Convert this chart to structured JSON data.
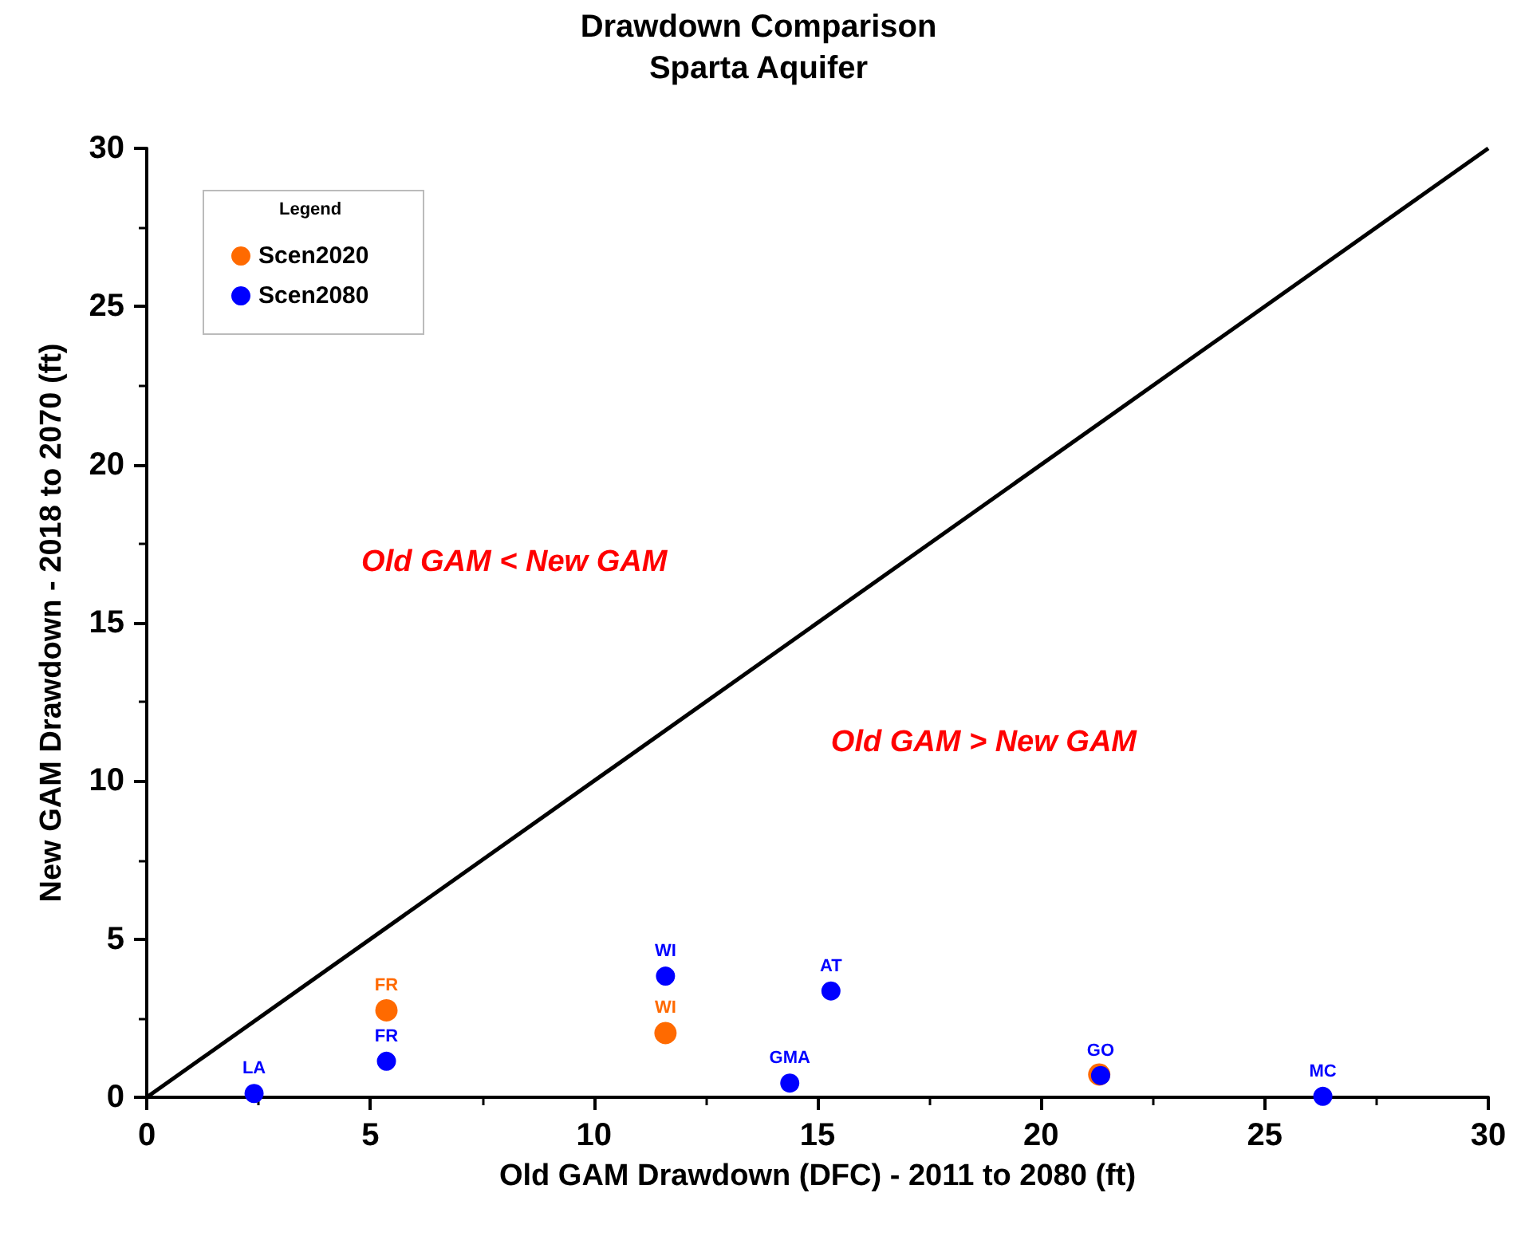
{
  "chart_data": {
    "type": "scatter",
    "title": "Drawdown Comparison",
    "subtitle": "Sparta Aquifer",
    "xlabel": "Old GAM Drawdown (DFC) - 2011 to 2080 (ft)",
    "ylabel": "New GAM Drawdown - 2018 to 2070 (ft)",
    "legend_title": "Legend",
    "legend": "top left",
    "grid": false,
    "marker": "circle",
    "xlim": [
      0,
      30
    ],
    "xticks": [
      0,
      5,
      10,
      15,
      20,
      25,
      30
    ],
    "ylim": [
      0,
      30
    ],
    "yticks": [
      0,
      5,
      10,
      15,
      20,
      25,
      30
    ],
    "series": [
      {
        "type": "line",
        "color": "#000000",
        "x": [
          0,
          30
        ],
        "values": [
          0,
          30
        ],
        "marker": "none",
        "line_style": "solid"
      },
      {
        "name": "Scen2020",
        "color": "#ff6a00",
        "x": [
          5.36,
          11.6,
          21.3
        ],
        "values": [
          2.75,
          2.03,
          0.72
        ]
      },
      {
        "name": "Scen2080",
        "color": "#0000ff",
        "x": [
          2.4,
          5.36,
          11.6,
          14.38,
          15.3,
          21.33,
          26.3
        ],
        "values": [
          0.12,
          1.14,
          3.83,
          0.45,
          3.36,
          0.69,
          0.03
        ]
      }
    ],
    "annotations": [
      "Old GAM < New GAM",
      "Old GAM > New GAM",
      {
        "text": "LA",
        "x": 2.4,
        "y": 0.12
      },
      {
        "text": "FR",
        "x": 5.36,
        "y": 2.75
      },
      {
        "text": "FR",
        "x": 5.36,
        "y": 1.14
      },
      {
        "text": "WI",
        "x": 11.6,
        "y": 3.83
      },
      {
        "text": "WI",
        "x": 11.6,
        "y": 2.03
      },
      {
        "text": "GMA",
        "x": 14.38,
        "y": 0.45
      },
      {
        "text": "AT",
        "x": 15.3,
        "y": 3.36
      },
      {
        "text": "GO",
        "x": 21.33,
        "y": 0.69
      },
      {
        "text": "MC",
        "x": 26.3,
        "y": 0.03
      }
    ]
  }
}
